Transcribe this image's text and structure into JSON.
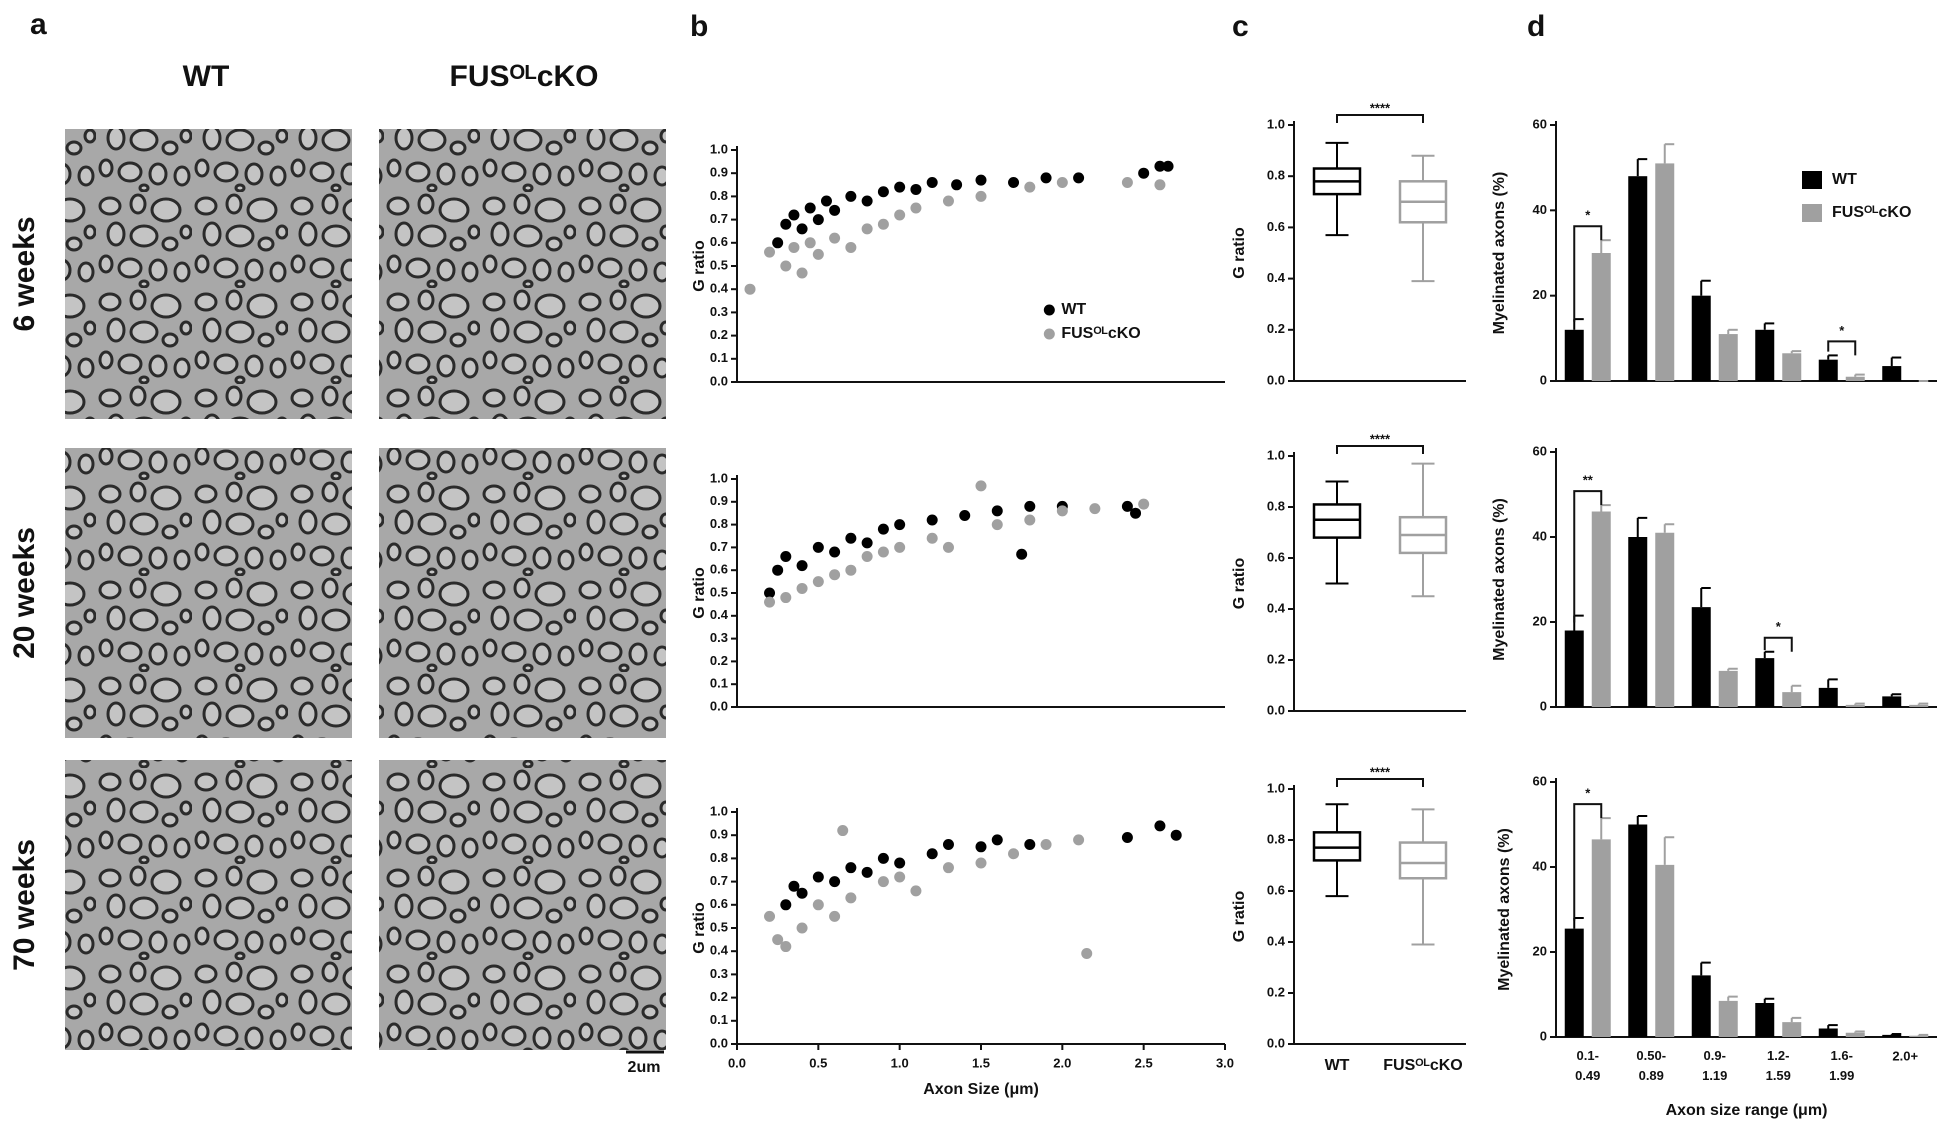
{
  "figure": {
    "panel_letters": [
      "a",
      "b",
      "c",
      "d"
    ],
    "columns": [
      "WT",
      "FUSᴼᴸcKO"
    ],
    "rows": [
      "6 weeks",
      "20 weeks",
      "70 weeks"
    ],
    "scale_bar": "2um"
  },
  "chart_data": [
    {
      "type": "scatter",
      "y_label": "G ratio",
      "xlim": [
        0,
        3
      ],
      "ylim": [
        0,
        1
      ],
      "yticks": [
        {
          "value": 0,
          "label": "0.0"
        },
        0.1,
        0.2,
        0.3,
        0.4,
        0.5,
        0.6,
        0.7,
        0.8,
        0.9,
        {
          "value": 1,
          "label": "1.0"
        }
      ],
      "legend": "lower right",
      "series": [
        {
          "name": "WT",
          "color": "#000000",
          "x": [
            0.25,
            0.3,
            0.35,
            0.4,
            0.45,
            0.5,
            0.55,
            0.6,
            0.7,
            0.8,
            0.9,
            1.0,
            1.1,
            1.2,
            1.35,
            1.5,
            1.7,
            1.9,
            2.1,
            2.5,
            2.6,
            2.65
          ],
          "values": [
            0.6,
            0.68,
            0.72,
            0.66,
            0.75,
            0.7,
            0.78,
            0.74,
            0.8,
            0.78,
            0.82,
            0.84,
            0.83,
            0.86,
            0.85,
            0.87,
            0.86,
            0.88,
            0.88,
            0.9,
            0.93,
            0.93
          ]
        },
        {
          "name": "FUSᴼᴸcKO",
          "color": "#a0a0a0",
          "x": [
            0.08,
            0.2,
            0.3,
            0.35,
            0.4,
            0.45,
            0.5,
            0.6,
            0.7,
            0.8,
            0.9,
            1.0,
            1.1,
            1.3,
            1.5,
            1.8,
            2.0,
            2.4,
            2.6
          ],
          "values": [
            0.4,
            0.56,
            0.5,
            0.58,
            0.47,
            0.6,
            0.55,
            0.62,
            0.58,
            0.66,
            0.68,
            0.72,
            0.75,
            0.78,
            0.8,
            0.84,
            0.86,
            0.86,
            0.85
          ]
        }
      ]
    },
    {
      "type": "scatter",
      "y_label": "G ratio",
      "xlim": [
        0,
        3
      ],
      "ylim": [
        0,
        1
      ],
      "yticks": [
        {
          "value": 0,
          "label": "0.0"
        },
        0.1,
        0.2,
        0.3,
        0.4,
        0.5,
        0.6,
        0.7,
        0.8,
        0.9,
        {
          "value": 1,
          "label": "1.0"
        }
      ],
      "series": [
        {
          "color": "#000000",
          "x": [
            0.2,
            0.25,
            0.3,
            0.4,
            0.5,
            0.6,
            0.7,
            0.8,
            0.9,
            1.0,
            1.2,
            1.4,
            1.6,
            1.8,
            2.0,
            2.4,
            2.45,
            1.75
          ],
          "values": [
            0.5,
            0.6,
            0.66,
            0.62,
            0.7,
            0.68,
            0.74,
            0.72,
            0.78,
            0.8,
            0.82,
            0.84,
            0.86,
            0.88,
            0.88,
            0.88,
            0.85,
            0.67
          ]
        },
        {
          "color": "#a0a0a0",
          "x": [
            0.2,
            0.3,
            0.4,
            0.5,
            0.6,
            0.7,
            0.8,
            0.9,
            1.0,
            1.2,
            1.3,
            1.5,
            1.6,
            1.8,
            2.0,
            2.2,
            2.5
          ],
          "values": [
            0.46,
            0.48,
            0.52,
            0.55,
            0.58,
            0.6,
            0.66,
            0.68,
            0.7,
            0.74,
            0.7,
            0.97,
            0.8,
            0.82,
            0.86,
            0.87,
            0.89
          ]
        }
      ]
    },
    {
      "type": "scatter",
      "y_label": "G ratio",
      "x_label": "Axon Size (μm)",
      "xlim": [
        0,
        3
      ],
      "ylim": [
        0,
        1
      ],
      "xticks": [
        {
          "value": 0,
          "label": "0.0"
        },
        0.5,
        {
          "value": 1,
          "label": "1.0"
        },
        1.5,
        {
          "value": 2,
          "label": "2.0"
        },
        2.5,
        {
          "value": 3,
          "label": "3.0"
        }
      ],
      "yticks": [
        {
          "value": 0,
          "label": "0.0"
        },
        0.1,
        0.2,
        0.3,
        0.4,
        0.5,
        0.6,
        0.7,
        0.8,
        0.9,
        {
          "value": 1,
          "label": "1.0"
        }
      ],
      "series": [
        {
          "color": "#000000",
          "x": [
            0.3,
            0.35,
            0.4,
            0.5,
            0.6,
            0.7,
            0.8,
            0.9,
            1.0,
            1.2,
            1.3,
            1.5,
            1.6,
            1.8,
            2.4,
            2.6,
            2.7
          ],
          "values": [
            0.6,
            0.68,
            0.65,
            0.72,
            0.7,
            0.76,
            0.74,
            0.8,
            0.78,
            0.82,
            0.86,
            0.85,
            0.88,
            0.86,
            0.89,
            0.94,
            0.9
          ]
        },
        {
          "color": "#a0a0a0",
          "x": [
            0.2,
            0.25,
            0.3,
            0.4,
            0.5,
            0.6,
            0.7,
            0.65,
            0.9,
            1.0,
            1.1,
            1.3,
            1.5,
            1.7,
            1.9,
            2.1,
            2.15
          ],
          "values": [
            0.55,
            0.45,
            0.42,
            0.5,
            0.6,
            0.55,
            0.63,
            0.92,
            0.7,
            0.72,
            0.66,
            0.76,
            0.78,
            0.82,
            0.86,
            0.88,
            0.39
          ]
        }
      ]
    },
    {
      "type": "box",
      "y_label": "G ratio",
      "ylim": [
        0,
        1
      ],
      "annotation": "****",
      "yticks": [
        {
          "value": 0,
          "label": "0.0"
        },
        0.2,
        0.4,
        0.6,
        0.8,
        {
          "value": 1,
          "label": "1.0"
        }
      ],
      "boxes": [
        {
          "color": "#000000",
          "min": 0.57,
          "q1": 0.73,
          "median": 0.78,
          "q3": 0.83,
          "max": 0.93
        },
        {
          "color": "#a0a0a0",
          "min": 0.39,
          "q1": 0.62,
          "median": 0.7,
          "q3": 0.78,
          "max": 0.88
        }
      ]
    },
    {
      "type": "box",
      "y_label": "G ratio",
      "ylim": [
        0,
        1
      ],
      "annotation": "****",
      "yticks": [
        {
          "value": 0,
          "label": "0.0"
        },
        0.2,
        0.4,
        0.6,
        0.8,
        {
          "value": 1,
          "label": "1.0"
        }
      ],
      "boxes": [
        {
          "color": "#000000",
          "min": 0.5,
          "q1": 0.68,
          "median": 0.75,
          "q3": 0.81,
          "max": 0.9
        },
        {
          "color": "#a0a0a0",
          "min": 0.45,
          "q1": 0.62,
          "median": 0.69,
          "q3": 0.76,
          "max": 0.97
        }
      ]
    },
    {
      "type": "box",
      "y_label": "G ratio",
      "ylim": [
        0,
        1
      ],
      "annotation": "****",
      "categories": [
        "WT",
        "FUSᴼᴸcKO"
      ],
      "yticks": [
        {
          "value": 0,
          "label": "0.0"
        },
        0.2,
        0.4,
        0.6,
        0.8,
        {
          "value": 1,
          "label": "1.0"
        }
      ],
      "boxes": [
        {
          "color": "#000000",
          "min": 0.58,
          "q1": 0.72,
          "median": 0.77,
          "q3": 0.83,
          "max": 0.94
        },
        {
          "color": "#a0a0a0",
          "min": 0.39,
          "q1": 0.65,
          "median": 0.71,
          "q3": 0.79,
          "max": 0.92
        }
      ]
    },
    {
      "type": "bar",
      "y_label": "Myelinated axons (%)",
      "ylim": [
        0,
        60
      ],
      "yticks": [
        0,
        20,
        40,
        60
      ],
      "legend": "upper right",
      "series": [
        {
          "name": "WT",
          "color": "#000000",
          "values": [
            12,
            48,
            20,
            12,
            5,
            3.5
          ],
          "errors": [
            2.5,
            4,
            3.5,
            1.5,
            1,
            2
          ]
        },
        {
          "name": "FUSᴼᴸcKO",
          "color": "#a0a0a0",
          "values": [
            30,
            51,
            11,
            6.5,
            1,
            0
          ],
          "errors": [
            3,
            4.5,
            1,
            0.5,
            0.5,
            0
          ]
        }
      ],
      "annotations": [
        {
          "label": "*",
          "at": 0
        },
        {
          "label": "*",
          "at": 4
        }
      ]
    },
    {
      "type": "bar",
      "y_label": "Myelinated axons (%)",
      "ylim": [
        0,
        60
      ],
      "yticks": [
        0,
        20,
        40,
        60
      ],
      "series": [
        {
          "color": "#000000",
          "values": [
            18,
            40,
            23.5,
            11.5,
            4.5,
            2.5
          ],
          "errors": [
            3.5,
            4.5,
            4.5,
            1.5,
            2,
            0.5
          ]
        },
        {
          "color": "#a0a0a0",
          "values": [
            46,
            41,
            8.5,
            3.5,
            0.5,
            0.5
          ],
          "errors": [
            1.5,
            2,
            0.5,
            1.5,
            0.3,
            0.3
          ]
        }
      ],
      "annotations": [
        {
          "label": "**",
          "at": 0
        },
        {
          "label": "*",
          "at": 3
        }
      ]
    },
    {
      "type": "bar",
      "y_label": "Myelinated axons (%)",
      "x_label": "Axon size range (μm)",
      "ylim": [
        0,
        60
      ],
      "yticks": [
        0,
        20,
        40,
        60
      ],
      "categories": [
        "0.1-0.49",
        "0.50-0.89",
        "0.9-1.19",
        "1.2-1.59",
        "1.6-1.99",
        "2.0+"
      ],
      "series": [
        {
          "color": "#000000",
          "values": [
            25.5,
            50,
            14.5,
            8,
            2,
            0.5
          ],
          "errors": [
            2.5,
            2,
            3,
            1,
            0.8,
            0.2
          ]
        },
        {
          "color": "#a0a0a0",
          "values": [
            46.5,
            40.5,
            8.5,
            3.5,
            1,
            0.3
          ],
          "errors": [
            5,
            6.5,
            1,
            1,
            0.3,
            0.2
          ]
        }
      ],
      "annotations": [
        {
          "label": "*",
          "at": 0
        }
      ]
    }
  ]
}
